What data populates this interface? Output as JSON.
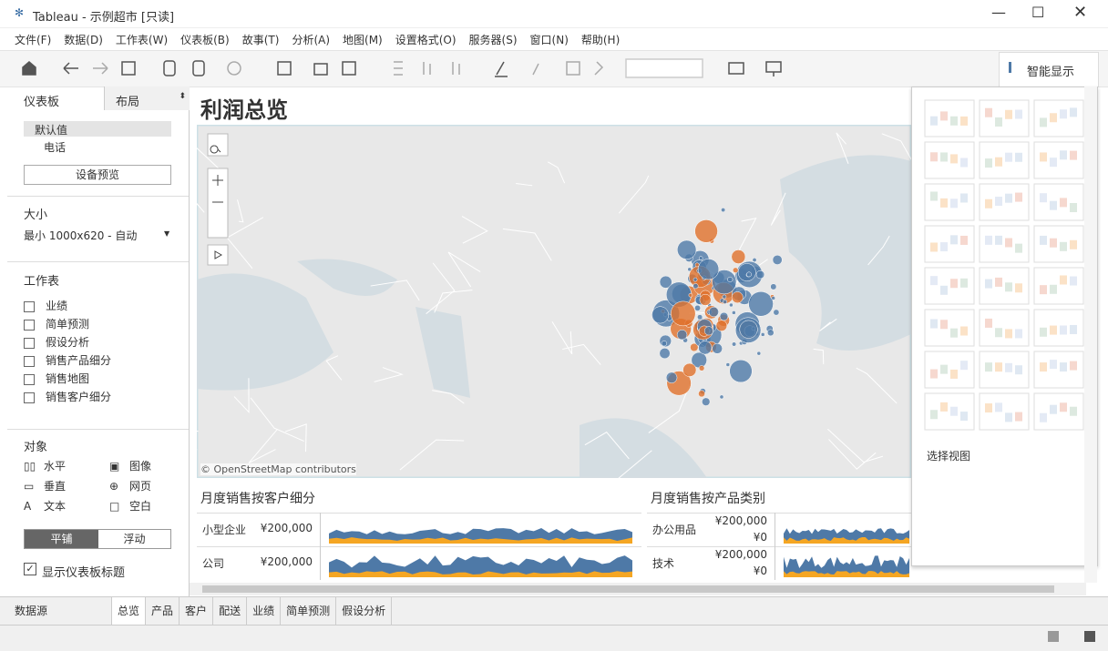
{
  "window": {
    "title": "Tableau - 示例超市 [只读]"
  },
  "menu": [
    "文件(F)",
    "数据(D)",
    "工作表(W)",
    "仪表板(B)",
    "故事(T)",
    "分析(A)",
    "地图(M)",
    "设置格式(O)",
    "服务器(S)",
    "窗口(N)",
    "帮助(H)"
  ],
  "sidebar": {
    "tabs": [
      "仪表板",
      "布局"
    ],
    "devices": [
      "默认值",
      "电话"
    ],
    "device_preview": "设备预览",
    "size_heading": "大小",
    "size_value": "最小 1000x620 - 自动",
    "sheets_heading": "工作表",
    "sheets": [
      "业绩",
      "简单预测",
      "假设分析",
      "销售产品细分",
      "销售地图",
      "销售客户细分"
    ],
    "objects_heading": "对象",
    "objects": [
      "水平",
      "图像",
      "垂直",
      "网页",
      "文本",
      "空白"
    ],
    "layout_modes": [
      "平铺",
      "浮动"
    ],
    "show_title": "显示仪表板标题"
  },
  "dashboard": {
    "title": "利润总览",
    "map_credit": "© OpenStreetMap contributors",
    "panels": [
      {
        "title": "月度销售按客户细分",
        "rows": [
          {
            "label": "小型企业",
            "ticks": [
              "¥200,000"
            ]
          },
          {
            "label": "公司",
            "ticks": [
              "¥200,000"
            ]
          }
        ]
      },
      {
        "title": "月度销售按产品类别",
        "rows": [
          {
            "label": "办公用品",
            "ticks": [
              "¥200,000",
              "¥0"
            ]
          },
          {
            "label": "技术",
            "ticks": [
              "¥200,000",
              "¥0"
            ]
          }
        ]
      }
    ]
  },
  "show_me": {
    "button": "智能显示",
    "hint": "选择视图"
  },
  "tabs": [
    "数据源",
    "总览",
    "产品",
    "客户",
    "配送",
    "业绩",
    "简单预测",
    "假设分析"
  ]
}
